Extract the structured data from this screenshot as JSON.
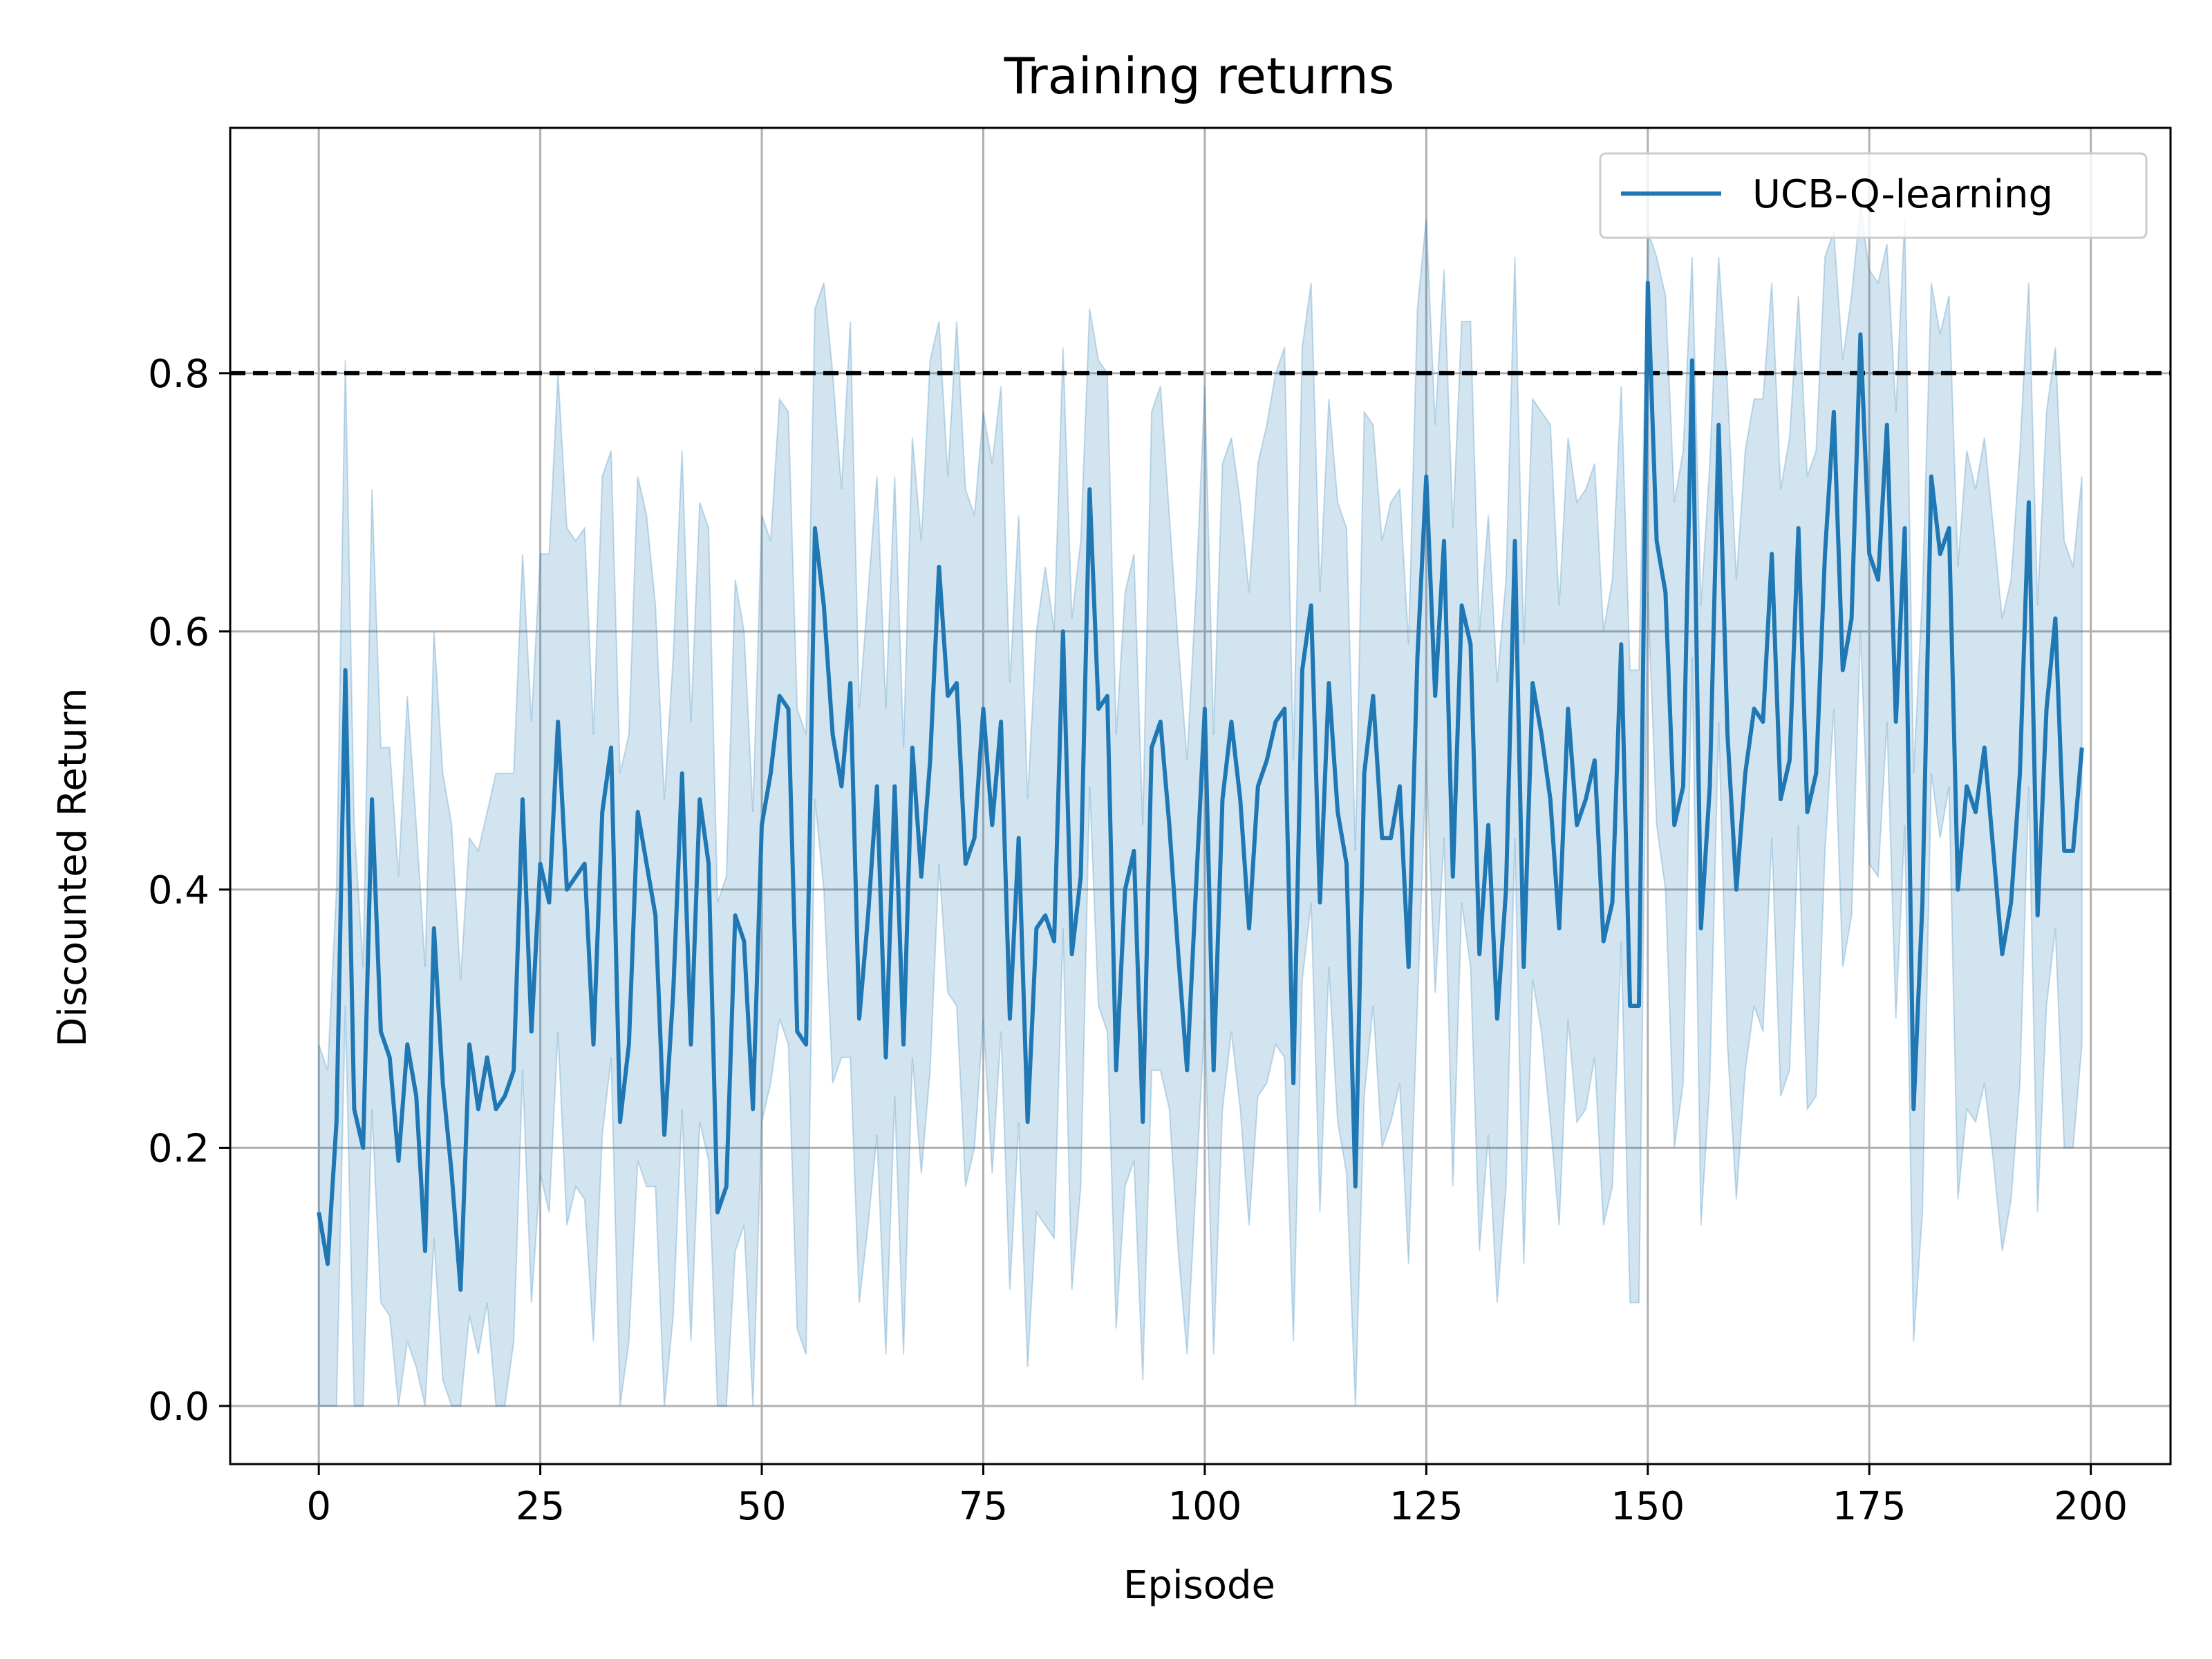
{
  "chart_data": {
    "type": "line",
    "title": "Training returns",
    "xlabel": "Episode",
    "ylabel": "Discounted Return",
    "xlim": [
      -10,
      209
    ],
    "ylim": [
      -0.045,
      0.99
    ],
    "xticks": [
      0,
      25,
      50,
      75,
      100,
      125,
      150,
      175,
      200
    ],
    "yticks": [
      0.0,
      0.2,
      0.4,
      0.6,
      0.8
    ],
    "xtick_labels": [
      "0",
      "25",
      "50",
      "75",
      "100",
      "125",
      "150",
      "175",
      "200"
    ],
    "ytick_labels": [
      "0.0",
      "0.2",
      "0.4",
      "0.6",
      "0.8"
    ],
    "grid": true,
    "legend_position": "top-right",
    "reference_line": {
      "y": 0.8,
      "style": "dashed",
      "color": "#000000"
    },
    "colors": {
      "line": "#1f77b4",
      "band": "#1f77b4",
      "grid": "#b0b0b0"
    },
    "series": [
      {
        "name": "UCB-Q-learning",
        "x_start": 0,
        "x_step": 1,
        "values": [
          0.15,
          0.11,
          0.22,
          0.57,
          0.23,
          0.2,
          0.47,
          0.29,
          0.27,
          0.19,
          0.28,
          0.24,
          0.12,
          0.37,
          0.25,
          0.18,
          0.09,
          0.28,
          0.23,
          0.27,
          0.23,
          0.24,
          0.26,
          0.47,
          0.29,
          0.42,
          0.39,
          0.53,
          0.4,
          0.41,
          0.42,
          0.28,
          0.46,
          0.51,
          0.22,
          0.28,
          0.46,
          0.42,
          0.38,
          0.21,
          0.32,
          0.49,
          0.28,
          0.47,
          0.42,
          0.15,
          0.17,
          0.38,
          0.36,
          0.23,
          0.45,
          0.49,
          0.55,
          0.54,
          0.29,
          0.28,
          0.68,
          0.62,
          0.52,
          0.48,
          0.56,
          0.3,
          0.38,
          0.48,
          0.27,
          0.48,
          0.28,
          0.51,
          0.41,
          0.5,
          0.65,
          0.55,
          0.56,
          0.42,
          0.44,
          0.54,
          0.45,
          0.53,
          0.3,
          0.44,
          0.22,
          0.37,
          0.38,
          0.36,
          0.6,
          0.35,
          0.41,
          0.71,
          0.54,
          0.55,
          0.26,
          0.4,
          0.43,
          0.22,
          0.51,
          0.53,
          0.45,
          0.35,
          0.26,
          0.4,
          0.54,
          0.26,
          0.47,
          0.53,
          0.47,
          0.37,
          0.48,
          0.5,
          0.53,
          0.54,
          0.25,
          0.57,
          0.62,
          0.39,
          0.56,
          0.46,
          0.42,
          0.17,
          0.49,
          0.55,
          0.44,
          0.44,
          0.48,
          0.34,
          0.58,
          0.72,
          0.55,
          0.67,
          0.41,
          0.62,
          0.59,
          0.35,
          0.45,
          0.3,
          0.4,
          0.67,
          0.34,
          0.56,
          0.52,
          0.47,
          0.37,
          0.54,
          0.45,
          0.47,
          0.5,
          0.36,
          0.39,
          0.59,
          0.31,
          0.31,
          0.87,
          0.67,
          0.63,
          0.45,
          0.48,
          0.81,
          0.37,
          0.48,
          0.76,
          0.52,
          0.4,
          0.49,
          0.54,
          0.53,
          0.66,
          0.47,
          0.5,
          0.68,
          0.46,
          0.49,
          0.66,
          0.77,
          0.57,
          0.61,
          0.83,
          0.66,
          0.64,
          0.76,
          0.53,
          0.68,
          0.23,
          0.39,
          0.72,
          0.66,
          0.68,
          0.4,
          0.48,
          0.46,
          0.51,
          0.43,
          0.35,
          0.39,
          0.49,
          0.7,
          0.38,
          0.54,
          0.61,
          0.43,
          0.43,
          0.51
        ],
        "band_upper": [
          0.28,
          0.26,
          0.4,
          0.81,
          0.45,
          0.34,
          0.71,
          0.51,
          0.51,
          0.41,
          0.55,
          0.45,
          0.34,
          0.6,
          0.49,
          0.45,
          0.33,
          0.44,
          0.43,
          0.46,
          0.49,
          0.49,
          0.49,
          0.66,
          0.53,
          0.66,
          0.66,
          0.8,
          0.68,
          0.67,
          0.68,
          0.52,
          0.72,
          0.74,
          0.49,
          0.52,
          0.72,
          0.69,
          0.62,
          0.47,
          0.58,
          0.74,
          0.53,
          0.7,
          0.68,
          0.39,
          0.41,
          0.64,
          0.6,
          0.46,
          0.69,
          0.67,
          0.78,
          0.77,
          0.54,
          0.52,
          0.85,
          0.87,
          0.8,
          0.71,
          0.84,
          0.54,
          0.63,
          0.72,
          0.54,
          0.72,
          0.51,
          0.75,
          0.67,
          0.81,
          0.84,
          0.72,
          0.84,
          0.71,
          0.69,
          0.77,
          0.73,
          0.79,
          0.56,
          0.69,
          0.47,
          0.6,
          0.65,
          0.6,
          0.82,
          0.61,
          0.67,
          0.85,
          0.81,
          0.8,
          0.52,
          0.63,
          0.66,
          0.45,
          0.77,
          0.79,
          0.69,
          0.59,
          0.5,
          0.63,
          0.79,
          0.52,
          0.73,
          0.75,
          0.7,
          0.63,
          0.73,
          0.76,
          0.8,
          0.82,
          0.5,
          0.82,
          0.87,
          0.63,
          0.78,
          0.7,
          0.68,
          0.43,
          0.77,
          0.76,
          0.67,
          0.7,
          0.71,
          0.59,
          0.85,
          0.92,
          0.76,
          0.88,
          0.68,
          0.84,
          0.84,
          0.6,
          0.69,
          0.56,
          0.64,
          0.89,
          0.59,
          0.78,
          0.77,
          0.76,
          0.62,
          0.75,
          0.7,
          0.71,
          0.73,
          0.6,
          0.64,
          0.79,
          0.57,
          0.57,
          0.91,
          0.89,
          0.86,
          0.7,
          0.74,
          0.89,
          0.62,
          0.73,
          0.89,
          0.79,
          0.64,
          0.74,
          0.78,
          0.78,
          0.87,
          0.71,
          0.75,
          0.86,
          0.72,
          0.74,
          0.89,
          0.91,
          0.81,
          0.86,
          0.93,
          0.88,
          0.87,
          0.9,
          0.77,
          0.92,
          0.49,
          0.63,
          0.87,
          0.83,
          0.86,
          0.65,
          0.74,
          0.71,
          0.75,
          0.68,
          0.61,
          0.64,
          0.74,
          0.87,
          0.62,
          0.77,
          0.82,
          0.67,
          0.65,
          0.72
        ],
        "band_lower": [
          0.0,
          0.0,
          0.0,
          0.31,
          0.0,
          0.0,
          0.23,
          0.08,
          0.07,
          0.0,
          0.05,
          0.03,
          0.0,
          0.13,
          0.02,
          0.0,
          0.0,
          0.07,
          0.04,
          0.08,
          0.0,
          0.0,
          0.05,
          0.26,
          0.08,
          0.18,
          0.15,
          0.29,
          0.14,
          0.17,
          0.16,
          0.05,
          0.21,
          0.27,
          0.0,
          0.05,
          0.19,
          0.17,
          0.17,
          0.0,
          0.07,
          0.23,
          0.05,
          0.22,
          0.19,
          0.0,
          0.0,
          0.12,
          0.14,
          0.0,
          0.22,
          0.25,
          0.3,
          0.28,
          0.06,
          0.04,
          0.47,
          0.4,
          0.25,
          0.27,
          0.27,
          0.08,
          0.14,
          0.21,
          0.04,
          0.24,
          0.04,
          0.27,
          0.18,
          0.26,
          0.42,
          0.32,
          0.31,
          0.17,
          0.2,
          0.3,
          0.18,
          0.29,
          0.09,
          0.22,
          0.03,
          0.15,
          0.14,
          0.13,
          0.37,
          0.09,
          0.17,
          0.48,
          0.31,
          0.29,
          0.06,
          0.17,
          0.19,
          0.02,
          0.26,
          0.26,
          0.23,
          0.12,
          0.04,
          0.17,
          0.3,
          0.04,
          0.23,
          0.29,
          0.23,
          0.14,
          0.24,
          0.25,
          0.28,
          0.27,
          0.05,
          0.33,
          0.39,
          0.15,
          0.34,
          0.22,
          0.18,
          0.0,
          0.24,
          0.31,
          0.2,
          0.22,
          0.25,
          0.11,
          0.31,
          0.5,
          0.32,
          0.44,
          0.17,
          0.39,
          0.34,
          0.12,
          0.21,
          0.08,
          0.17,
          0.44,
          0.11,
          0.33,
          0.29,
          0.22,
          0.14,
          0.3,
          0.22,
          0.23,
          0.27,
          0.14,
          0.17,
          0.36,
          0.08,
          0.08,
          0.63,
          0.45,
          0.4,
          0.2,
          0.25,
          0.58,
          0.14,
          0.25,
          0.53,
          0.28,
          0.16,
          0.26,
          0.31,
          0.29,
          0.44,
          0.24,
          0.26,
          0.45,
          0.23,
          0.24,
          0.43,
          0.54,
          0.34,
          0.38,
          0.6,
          0.42,
          0.41,
          0.53,
          0.3,
          0.45,
          0.05,
          0.15,
          0.49,
          0.44,
          0.48,
          0.16,
          0.23,
          0.22,
          0.25,
          0.19,
          0.12,
          0.16,
          0.25,
          0.48,
          0.15,
          0.31,
          0.37,
          0.2,
          0.2,
          0.28
        ]
      }
    ]
  }
}
